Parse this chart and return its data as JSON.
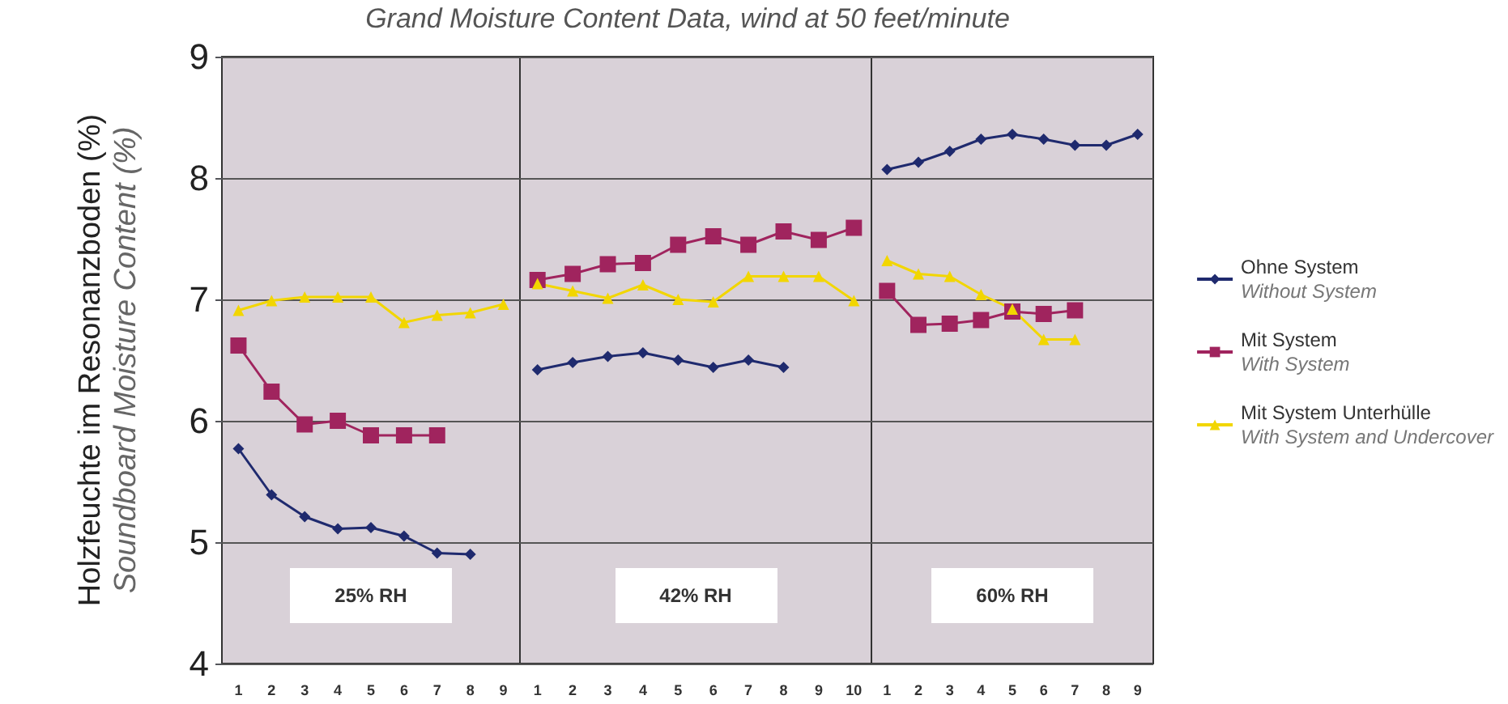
{
  "chart_data": [
    {
      "type": "line",
      "title": "Grand Moisture Content Data, wind at 50 feet/minute",
      "ylabel": "Holzfeuchte im Resonanzboden (%)\nSoundboard Moisture Content (%)",
      "categories": [
        "1",
        "2",
        "3",
        "4",
        "5",
        "6",
        "7",
        "8",
        "9"
      ],
      "ylim": [
        4,
        9
      ],
      "yticks": [
        4,
        5,
        6,
        7,
        8,
        9
      ],
      "grid": "y",
      "annotations": [
        "25% RH"
      ],
      "series": [
        {
          "color": "#1f2a6e",
          "marker": "diamond",
          "values": [
            5.77,
            5.39,
            5.21,
            5.11,
            5.12,
            5.05,
            4.91,
            4.9,
            null
          ]
        },
        {
          "color": "#a0245e",
          "marker": "square",
          "values": [
            6.62,
            6.24,
            5.97,
            6.0,
            5.88,
            5.88,
            5.88,
            null,
            null
          ]
        },
        {
          "color": "#f2d600",
          "marker": "triangle",
          "values": [
            6.91,
            6.99,
            7.02,
            7.02,
            7.02,
            6.81,
            6.87,
            6.89,
            6.96
          ]
        }
      ]
    },
    {
      "type": "line",
      "categories": [
        "1",
        "2",
        "3",
        "4",
        "5",
        "6",
        "7",
        "8",
        "9",
        "10"
      ],
      "ylim": [
        4,
        9
      ],
      "yticks": [
        4,
        5,
        6,
        7,
        8,
        9
      ],
      "grid": "y",
      "tick_labels": "x",
      "annotations": [
        "42% RH"
      ],
      "series": [
        {
          "color": "#1f2a6e",
          "marker": "diamond",
          "values": [
            6.42,
            6.48,
            6.53,
            6.56,
            6.5,
            6.44,
            6.5,
            6.44,
            null,
            null
          ]
        },
        {
          "color": "#a0245e",
          "marker": "square",
          "values": [
            7.16,
            7.21,
            7.29,
            7.3,
            7.45,
            7.52,
            7.45,
            7.56,
            7.49,
            7.59
          ]
        },
        {
          "color": "#f2d600",
          "marker": "triangle",
          "values": [
            7.13,
            7.07,
            7.01,
            7.12,
            7.0,
            6.98,
            7.19,
            7.19,
            7.19,
            6.99
          ]
        }
      ]
    },
    {
      "type": "line",
      "categories": [
        "1",
        "2",
        "3",
        "4",
        "5",
        "6",
        "7",
        "8",
        "9"
      ],
      "ylim": [
        4,
        9
      ],
      "yticks": [
        4,
        5,
        6,
        7,
        8,
        9
      ],
      "grid": "y",
      "tick_labels": "x",
      "annotations": [
        "60% RH"
      ],
      "legend": "right",
      "series": [
        {
          "name": "Ohne System\nWithout System",
          "color": "#1f2a6e",
          "marker": "diamond",
          "values": [
            8.07,
            8.13,
            8.22,
            8.32,
            8.36,
            8.32,
            8.27,
            8.27,
            8.36
          ]
        },
        {
          "name": "Mit System\nWith System",
          "color": "#a0245e",
          "marker": "square",
          "values": [
            7.07,
            6.79,
            6.8,
            6.83,
            6.9,
            6.88,
            6.91,
            null,
            null
          ]
        },
        {
          "name": "Mit System Unterhülle\nWith System and Undercover",
          "color": "#f2d600",
          "marker": "triangle",
          "values": [
            7.32,
            7.21,
            7.19,
            7.04,
            6.92,
            6.67,
            6.67,
            null,
            null
          ]
        }
      ]
    }
  ]
}
